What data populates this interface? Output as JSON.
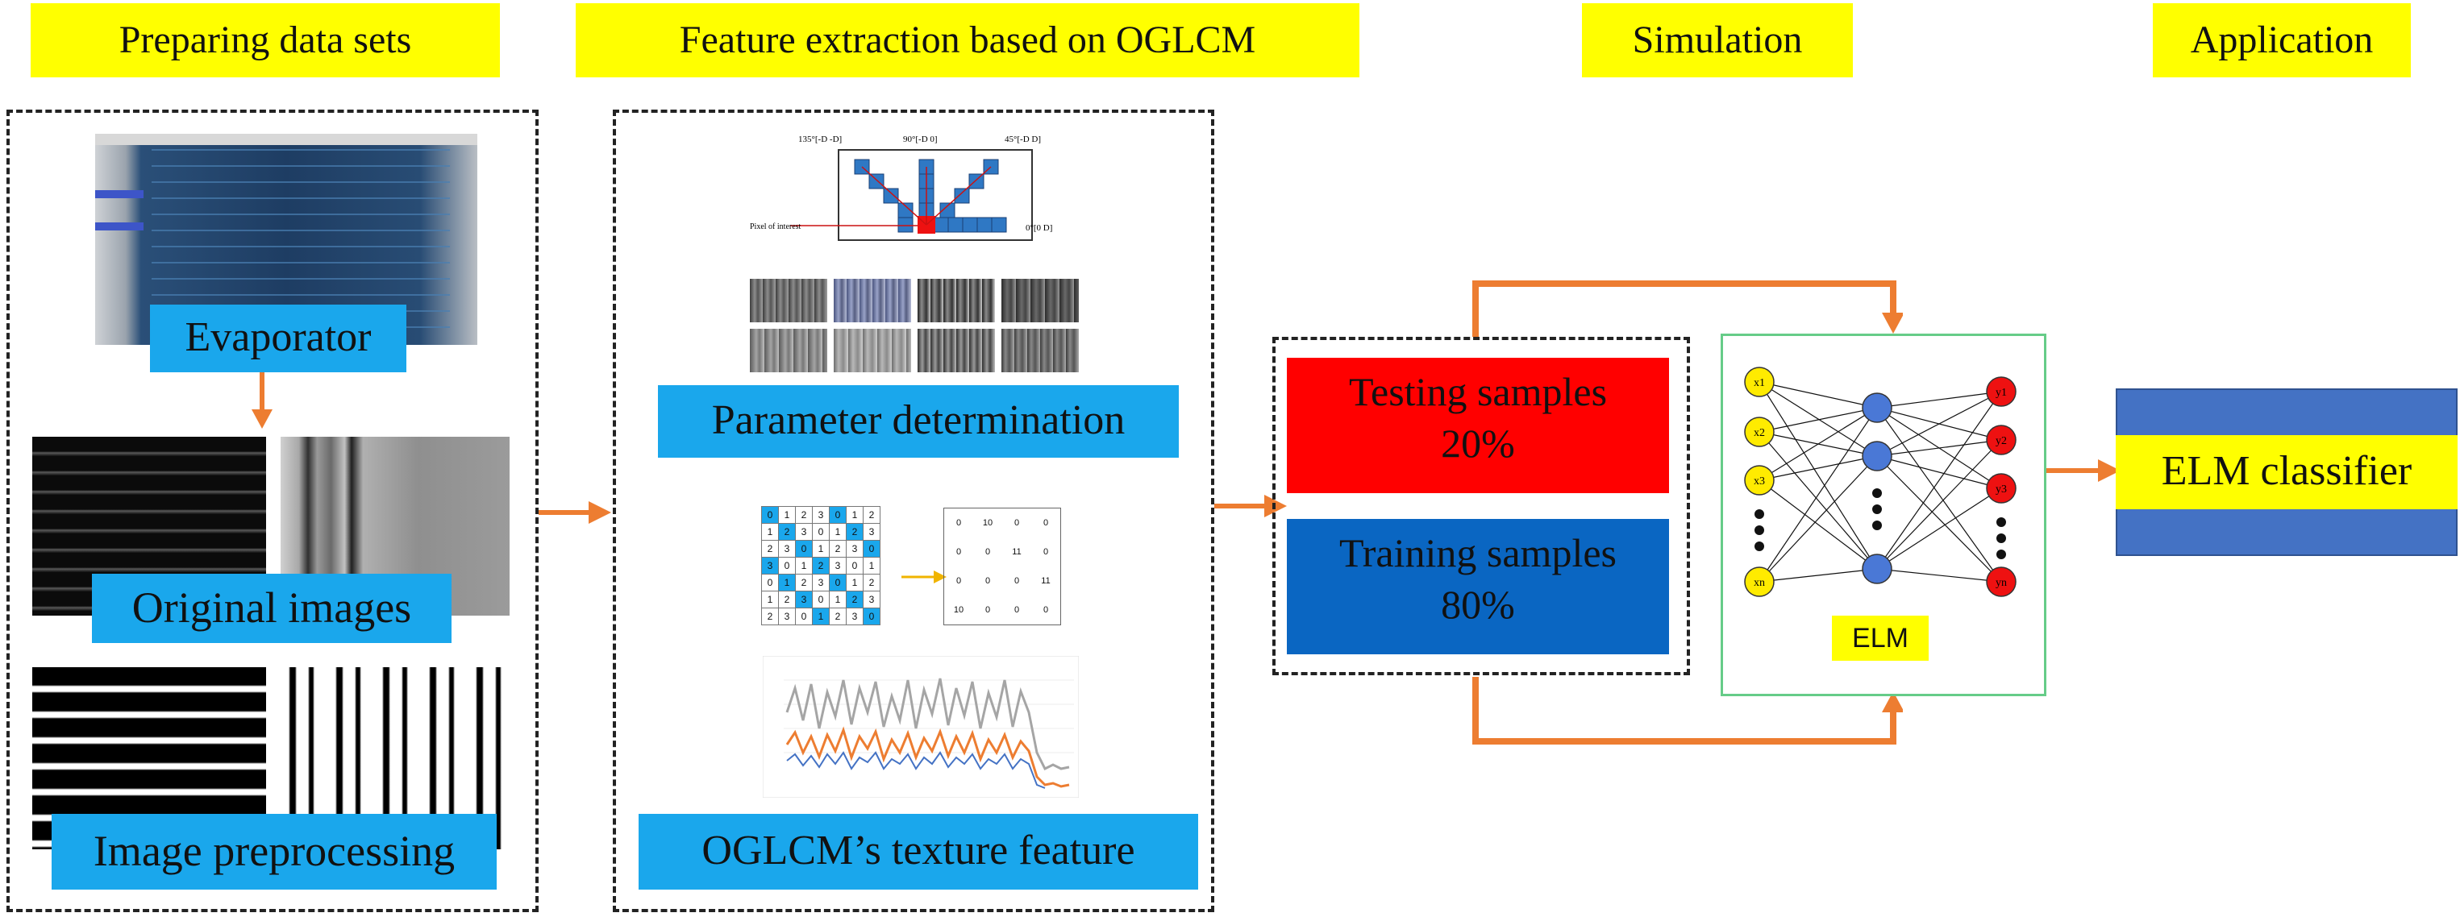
{
  "stages": [
    {
      "label": "Preparing data sets"
    },
    {
      "label": "Feature extraction based on OGLCM"
    },
    {
      "label": "Simulation"
    },
    {
      "label": "Application"
    }
  ],
  "prep": {
    "evaporator": "Evaporator",
    "original": "Original images",
    "preprocessing": "Image preprocessing"
  },
  "feature": {
    "param": "Parameter determination",
    "texture": "OGLCM’s texture feature",
    "directions": {
      "d135": "135°[-D -D]",
      "d90": "90°[-D 0]",
      "d45": "45°[-D D]",
      "d0": "0°[0 D]",
      "pixel": "Pixel of interest"
    },
    "matrix_left": [
      [
        "0",
        "1",
        "2",
        "3",
        "0",
        "1",
        "2"
      ],
      [
        "1",
        "2",
        "3",
        "0",
        "1",
        "2",
        "3"
      ],
      [
        "2",
        "3",
        "0",
        "1",
        "2",
        "3",
        "0"
      ],
      [
        "3",
        "0",
        "1",
        "2",
        "3",
        "0",
        "1"
      ],
      [
        "0",
        "1",
        "2",
        "3",
        "0",
        "1",
        "2"
      ],
      [
        "1",
        "2",
        "3",
        "0",
        "1",
        "2",
        "3"
      ],
      [
        "2",
        "3",
        "0",
        "1",
        "2",
        "3",
        "0"
      ]
    ],
    "matrix_right": [
      [
        "0",
        "10",
        "0",
        "0"
      ],
      [
        "0",
        "0",
        "11",
        "0"
      ],
      [
        "0",
        "0",
        "0",
        "11"
      ],
      [
        "10",
        "0",
        "0",
        "0"
      ]
    ]
  },
  "simulation": {
    "testing_line1": "Testing samples",
    "testing_line2": "20%",
    "training_line1": "Training samples",
    "training_line2": "80%",
    "elm_label": "ELM",
    "inputs": [
      "x1",
      "x2",
      "x3",
      "xn"
    ],
    "outputs": [
      "y1",
      "y2",
      "y3",
      "yn"
    ]
  },
  "application": {
    "classifier": "ELM classifier"
  },
  "colors": {
    "header": "#ffff00",
    "label_bg": "#1aa7ec",
    "testing": "#ff0000",
    "training": "#0a66c2",
    "arrow": "#ed7d31",
    "elm_border": "#66cc88",
    "classifier_blue": "#4472c4"
  }
}
